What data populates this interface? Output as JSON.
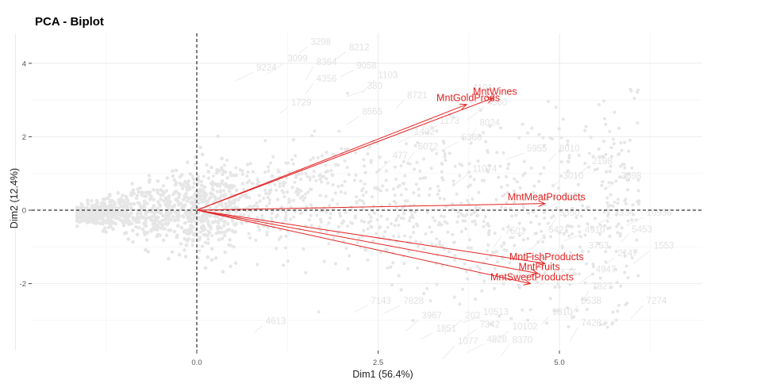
{
  "chart_data": {
    "type": "scatter",
    "title": "PCA - Biplot",
    "xlabel": "Dim1 (56.4%)",
    "ylabel": "Dim2 (12.4%)",
    "xlim": [
      -2.7,
      6.9
    ],
    "ylim": [
      -3.8,
      4.8
    ],
    "xticks": [
      {
        "v": 0,
        "label": "0.0"
      },
      {
        "v": 2.5,
        "label": "2.5"
      },
      {
        "v": 5,
        "label": "5.0"
      }
    ],
    "yticks": [
      {
        "v": -2,
        "label": "-2"
      },
      {
        "v": 0,
        "label": "0"
      },
      {
        "v": 2,
        "label": "2"
      },
      {
        "v": 4,
        "label": "4"
      }
    ],
    "grid": true,
    "point_color": "#e6e6e6",
    "vector_color": "#e32222",
    "variables": [
      {
        "name": "MntWines",
        "x": 4.09,
        "y": 3.06
      },
      {
        "name": "MntGoldProds",
        "x": 3.72,
        "y": 2.88
      },
      {
        "name": "MntMeatProducts",
        "x": 4.8,
        "y": 0.18
      },
      {
        "name": "MntFishProducts",
        "x": 4.8,
        "y": -1.45
      },
      {
        "name": "MntFruits",
        "x": 4.7,
        "y": -1.72
      },
      {
        "name": "MntSweetProducts",
        "x": 4.6,
        "y": -2.0
      }
    ],
    "observation_labels": [
      {
        "label": "3298",
        "x": 1.57,
        "y": 4.5
      },
      {
        "label": "8212",
        "x": 2.1,
        "y": 4.35
      },
      {
        "label": "3099",
        "x": 1.25,
        "y": 4.05
      },
      {
        "label": "8364",
        "x": 1.65,
        "y": 3.95
      },
      {
        "label": "9058",
        "x": 2.2,
        "y": 3.85
      },
      {
        "label": "9224",
        "x": 0.82,
        "y": 3.8
      },
      {
        "label": "4356",
        "x": 1.65,
        "y": 3.5
      },
      {
        "label": "1103",
        "x": 2.5,
        "y": 3.6
      },
      {
        "label": "380",
        "x": 2.35,
        "y": 3.3
      },
      {
        "label": "8721",
        "x": 2.9,
        "y": 3.05
      },
      {
        "label": "4101",
        "x": 3.8,
        "y": 3.25
      },
      {
        "label": "4560",
        "x": 4.0,
        "y": 2.85
      },
      {
        "label": "1729",
        "x": 1.3,
        "y": 2.85
      },
      {
        "label": "8565",
        "x": 2.28,
        "y": 2.6
      },
      {
        "label": "1173",
        "x": 3.35,
        "y": 2.35
      },
      {
        "label": "8024",
        "x": 3.9,
        "y": 2.3
      },
      {
        "label": "1402",
        "x": 3.0,
        "y": 2.05
      },
      {
        "label": "5366",
        "x": 3.65,
        "y": 1.9
      },
      {
        "label": "6072",
        "x": 3.05,
        "y": 1.65
      },
      {
        "label": "477",
        "x": 2.7,
        "y": 1.4
      },
      {
        "label": "5955",
        "x": 4.55,
        "y": 1.6
      },
      {
        "label": "8010",
        "x": 5.0,
        "y": 1.6
      },
      {
        "label": "2198",
        "x": 5.45,
        "y": 1.25
      },
      {
        "label": "11074",
        "x": 3.8,
        "y": 1.05
      },
      {
        "label": "3010",
        "x": 5.05,
        "y": 0.85
      },
      {
        "label": "3698",
        "x": 5.85,
        "y": 0.85
      },
      {
        "label": "1155",
        "x": 5.05,
        "y": 0.3
      },
      {
        "label": "5350",
        "x": 5.0,
        "y": -0.15
      },
      {
        "label": "3334",
        "x": 5.75,
        "y": -0.15
      },
      {
        "label": "10936",
        "x": 6.2,
        "y": -0.15
      },
      {
        "label": "7503",
        "x": 4.25,
        "y": -0.65
      },
      {
        "label": "5421",
        "x": 4.85,
        "y": -0.62
      },
      {
        "label": "4910",
        "x": 5.35,
        "y": -0.62
      },
      {
        "label": "5453",
        "x": 6.0,
        "y": -0.6
      },
      {
        "label": "3753",
        "x": 5.4,
        "y": -1.05
      },
      {
        "label": "1553",
        "x": 6.3,
        "y": -1.05
      },
      {
        "label": "2147",
        "x": 5.8,
        "y": -1.25
      },
      {
        "label": "4947",
        "x": 5.5,
        "y": -1.7
      },
      {
        "label": "1577",
        "x": 4.95,
        "y": -1.78
      },
      {
        "label": "7827",
        "x": 5.45,
        "y": -2.15
      },
      {
        "label": "7143",
        "x": 2.4,
        "y": -2.55
      },
      {
        "label": "7828",
        "x": 2.85,
        "y": -2.55
      },
      {
        "label": "5538",
        "x": 5.3,
        "y": -2.55
      },
      {
        "label": "7274",
        "x": 6.2,
        "y": -2.55
      },
      {
        "label": "10513",
        "x": 3.95,
        "y": -2.85
      },
      {
        "label": "9810",
        "x": 4.9,
        "y": -2.85
      },
      {
        "label": "3967",
        "x": 3.1,
        "y": -2.95
      },
      {
        "label": "202",
        "x": 3.7,
        "y": -2.95
      },
      {
        "label": "4613",
        "x": 0.95,
        "y": -3.1
      },
      {
        "label": "7342",
        "x": 3.9,
        "y": -3.2
      },
      {
        "label": "10102",
        "x": 4.35,
        "y": -3.25
      },
      {
        "label": "7428",
        "x": 5.3,
        "y": -3.15
      },
      {
        "label": "1851",
        "x": 3.3,
        "y": -3.3
      },
      {
        "label": "4828",
        "x": 4.0,
        "y": -3.6
      },
      {
        "label": "8370",
        "x": 4.35,
        "y": -3.62
      },
      {
        "label": "1077",
        "x": 3.6,
        "y": -3.65
      }
    ]
  }
}
